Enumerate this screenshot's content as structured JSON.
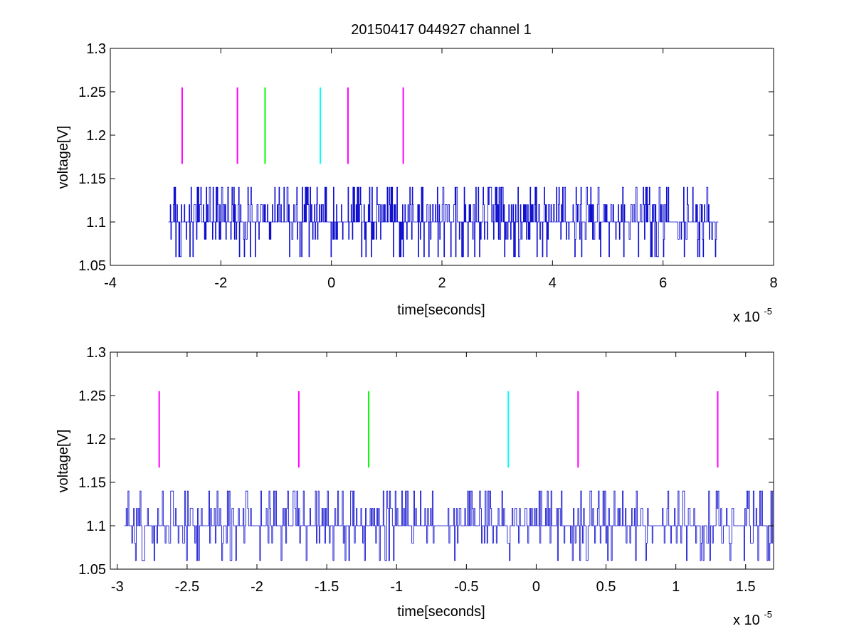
{
  "figure": {
    "title": "20150417 044927 channel 1"
  },
  "chart_data": [
    {
      "type": "line",
      "xlabel": "time[seconds]",
      "ylabel": "voltage[V]",
      "x_multiplier_label": "x 10",
      "x_multiplier_exponent": "-5",
      "xlim": [
        -4,
        8
      ],
      "ylim": [
        1.05,
        1.3
      ],
      "xticks": [
        -4,
        -2,
        0,
        2,
        4,
        6,
        8
      ],
      "xtick_labels": [
        "-4",
        "-2",
        "0",
        "2",
        "4",
        "6",
        "8"
      ],
      "yticks": [
        1.05,
        1.1,
        1.15,
        1.2,
        1.25,
        1.3
      ],
      "ytick_labels": [
        "1.05",
        "1.1",
        "1.15",
        "1.2",
        "1.25",
        "1.3"
      ],
      "grid": false,
      "series": [
        {
          "color": "#0000cc",
          "x_range": [
            -2.95,
            7.0
          ],
          "levels": [
            1.06,
            1.08,
            1.1,
            1.12,
            1.14
          ],
          "baseline": 1.1
        }
      ],
      "markers": [
        {
          "x": -2.7,
          "y": [
            1.167,
            1.255
          ],
          "color": "#ff00ff"
        },
        {
          "x": -1.7,
          "y": [
            1.167,
            1.255
          ],
          "color": "#ff00ff"
        },
        {
          "x": -1.2,
          "y": [
            1.167,
            1.255
          ],
          "color": "#00ff00"
        },
        {
          "x": -0.2,
          "y": [
            1.167,
            1.255
          ],
          "color": "#00ffff"
        },
        {
          "x": 0.3,
          "y": [
            1.167,
            1.255
          ],
          "color": "#ff00ff"
        },
        {
          "x": 1.3,
          "y": [
            1.167,
            1.255
          ],
          "color": "#ff00ff"
        }
      ]
    },
    {
      "type": "line",
      "xlabel": "time[seconds]",
      "ylabel": "voltage[V]",
      "x_multiplier_label": "x 10",
      "x_multiplier_exponent": "-5",
      "xlim": [
        -3.05,
        1.7
      ],
      "ylim": [
        1.05,
        1.3
      ],
      "xticks": [
        -3,
        -2.5,
        -2,
        -1.5,
        -1,
        -0.5,
        0,
        0.5,
        1,
        1.5
      ],
      "xtick_labels": [
        "-3",
        "-2.5",
        "-2",
        "-1.5",
        "-1",
        "-0.5",
        "0",
        "0.5",
        "1",
        "1.5"
      ],
      "yticks": [
        1.05,
        1.1,
        1.15,
        1.2,
        1.25,
        1.3
      ],
      "ytick_labels": [
        "1.05",
        "1.1",
        "1.15",
        "1.2",
        "1.25",
        "1.3"
      ],
      "grid": false,
      "series": [
        {
          "color": "#0000cc",
          "x_range": [
            -2.95,
            1.7
          ],
          "levels": [
            1.06,
            1.08,
            1.1,
            1.12,
            1.14
          ],
          "baseline": 1.1
        }
      ],
      "markers": [
        {
          "x": -2.7,
          "y": [
            1.167,
            1.255
          ],
          "color": "#ff00ff"
        },
        {
          "x": -1.7,
          "y": [
            1.167,
            1.255
          ],
          "color": "#ff00ff"
        },
        {
          "x": -1.2,
          "y": [
            1.167,
            1.255
          ],
          "color": "#00ff00"
        },
        {
          "x": -0.2,
          "y": [
            1.167,
            1.255
          ],
          "color": "#00ffff"
        },
        {
          "x": 0.3,
          "y": [
            1.167,
            1.255
          ],
          "color": "#ff00ff"
        },
        {
          "x": 1.3,
          "y": [
            1.167,
            1.255
          ],
          "color": "#ff00ff"
        }
      ]
    }
  ]
}
